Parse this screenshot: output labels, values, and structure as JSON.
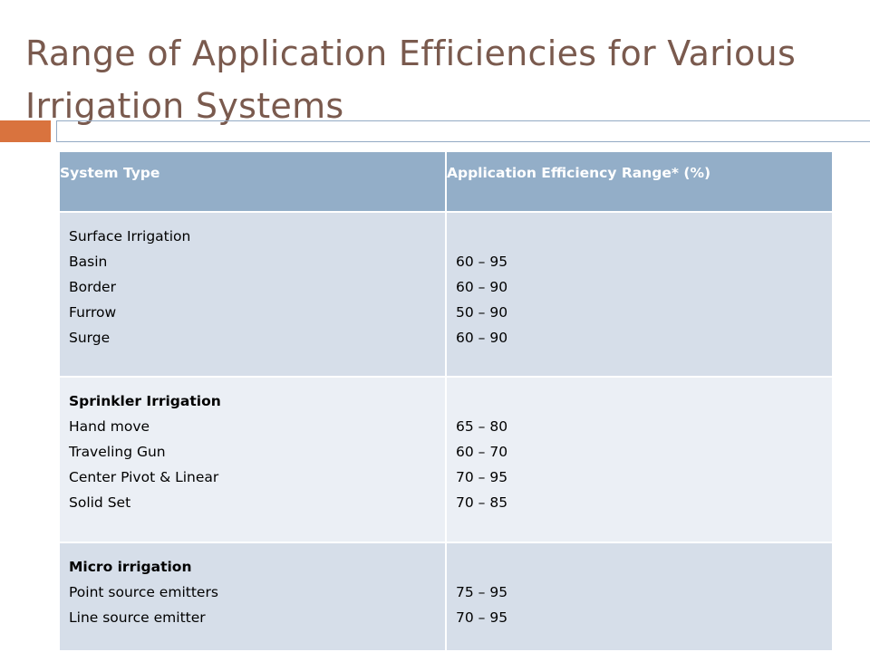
{
  "slide": {
    "title": "Range of Application Efficiencies for Various Irrigation Systems"
  },
  "table": {
    "headers": {
      "system_type": "System Type",
      "efficiency": "Application Efficiency Range* (%)"
    },
    "rows": [
      {
        "group": "Surface Irrigation",
        "items": [
          "Basin",
          "Border",
          "Furrow",
          "Surge"
        ],
        "ranges": [
          "60 – 95",
          "60 – 90",
          "50 – 90",
          "60 – 90"
        ]
      },
      {
        "group": "Sprinkler Irrigation",
        "items": [
          "Hand move",
          "Traveling Gun",
          "Center Pivot & Linear",
          "Solid Set"
        ],
        "ranges": [
          "65 – 80",
          "60 – 70",
          "70 – 95",
          "70 – 85"
        ]
      },
      {
        "group": "Micro irrigation",
        "items": [
          "Point source emitters",
          "Line source emitter"
        ],
        "ranges": [
          "75 – 95",
          "70 – 95"
        ]
      }
    ]
  },
  "colors": {
    "title": "#7a5a4e",
    "accent_orange": "#d9733e",
    "header_fill": "#93aec8",
    "row_dark": "#d6dee9",
    "row_light": "#ebeff5"
  }
}
